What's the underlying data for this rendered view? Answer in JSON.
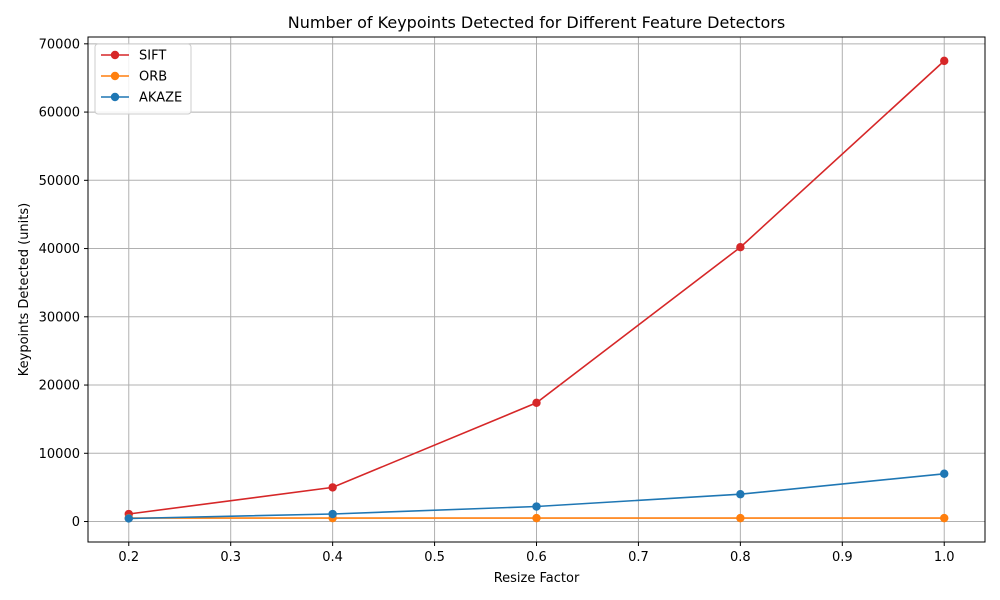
{
  "chart_data": {
    "type": "line",
    "title": "Number of Keypoints Detected for Different Feature Detectors",
    "xlabel": "Resize Factor",
    "ylabel": "Keypoints Detected (units)",
    "x": [
      0.2,
      0.4,
      0.6,
      0.8,
      1.0
    ],
    "xlim": [
      0.16,
      1.04
    ],
    "ylim": [
      -3000,
      71000
    ],
    "xticks": [
      0.2,
      0.3,
      0.4,
      0.5,
      0.6,
      0.7,
      0.8,
      0.9,
      1.0
    ],
    "xtick_labels": [
      "0.2",
      "0.3",
      "0.4",
      "0.5",
      "0.6",
      "0.7",
      "0.8",
      "0.9",
      "1.0"
    ],
    "yticks": [
      0,
      10000,
      20000,
      30000,
      40000,
      50000,
      60000,
      70000
    ],
    "ytick_labels": [
      "0",
      "10000",
      "20000",
      "30000",
      "40000",
      "50000",
      "60000",
      "70000"
    ],
    "grid": true,
    "legend_position": "upper-left",
    "marker": "circle",
    "series": [
      {
        "name": "SIFT",
        "color": "#d62728",
        "values": [
          1100,
          5000,
          17400,
          40200,
          67500
        ]
      },
      {
        "name": "ORB",
        "color": "#ff7f0e",
        "values": [
          500,
          500,
          500,
          500,
          500
        ]
      },
      {
        "name": "AKAZE",
        "color": "#1f77b4",
        "values": [
          450,
          1100,
          2200,
          4000,
          7000
        ]
      }
    ]
  }
}
